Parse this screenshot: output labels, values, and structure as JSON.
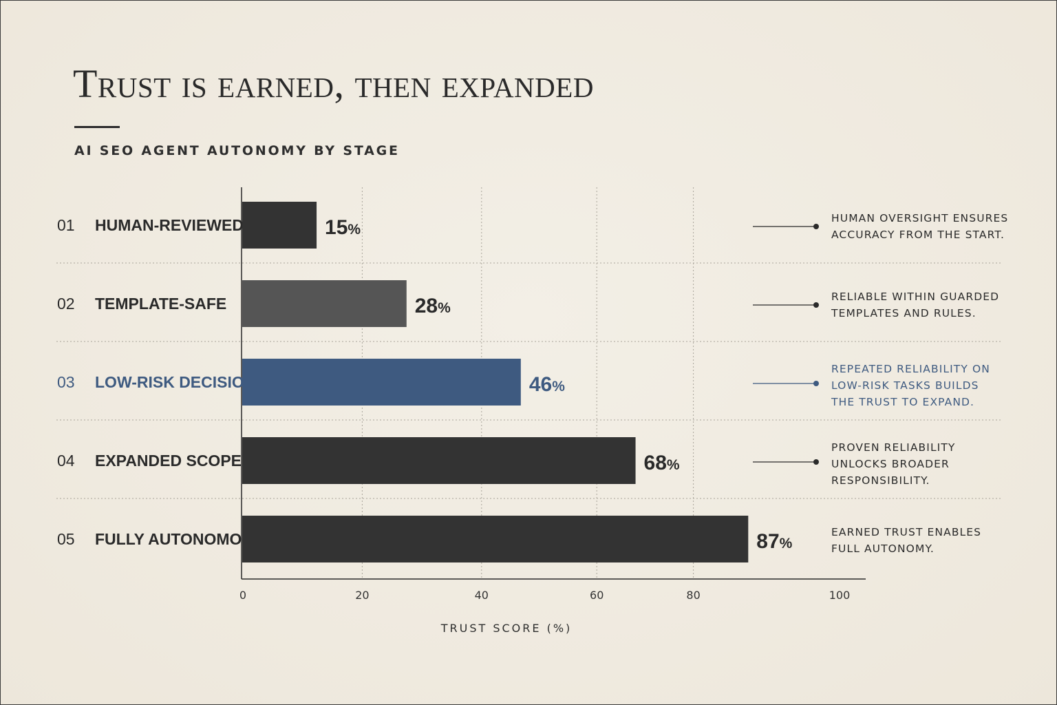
{
  "header": {
    "title": "Trust is earned, then expanded",
    "subtitle": "AI SEO AGENT AUTONOMY BY STAGE"
  },
  "colors": {
    "background": "#f1ece2",
    "bar_dark": "#333333",
    "bar_gray": "#555555",
    "bar_highlight": "#3e5a80",
    "text_dark": "#2a2a2a",
    "text_highlight": "#3e5a80"
  },
  "chart_data": {
    "type": "bar",
    "orientation": "horizontal",
    "categories": [
      "HUMAN-REVIEWED",
      "TEMPLATE-SAFE",
      "LOW-RISK DECISIONS",
      "EXPANDED SCOPE",
      "FULLY AUTONOMOUS"
    ],
    "stage_numbers": [
      "01",
      "02",
      "03",
      "04",
      "05"
    ],
    "values": [
      15,
      28,
      46,
      68,
      87
    ],
    "value_suffix": "%",
    "highlighted_index": 2,
    "xlabel": "TRUST SCORE (%)",
    "xlim": [
      0,
      100
    ],
    "xticks": [
      0,
      20,
      40,
      60,
      80,
      100
    ],
    "grid": true,
    "annotations": [
      [
        "HUMAN OVERSIGHT ENSURES",
        "ACCURACY FROM THE START."
      ],
      [
        "RELIABLE WITHIN GUARDED",
        "TEMPLATES AND RULES."
      ],
      [
        "REPEATED RELIABILITY ON",
        "LOW-RISK TASKS BUILDS",
        "THE TRUST TO EXPAND."
      ],
      [
        "PROVEN RELIABILITY",
        "UNLOCKS BROADER",
        "RESPONSIBILITY."
      ],
      [
        "EARNED TRUST ENABLES",
        "FULL AUTONOMY."
      ]
    ]
  }
}
